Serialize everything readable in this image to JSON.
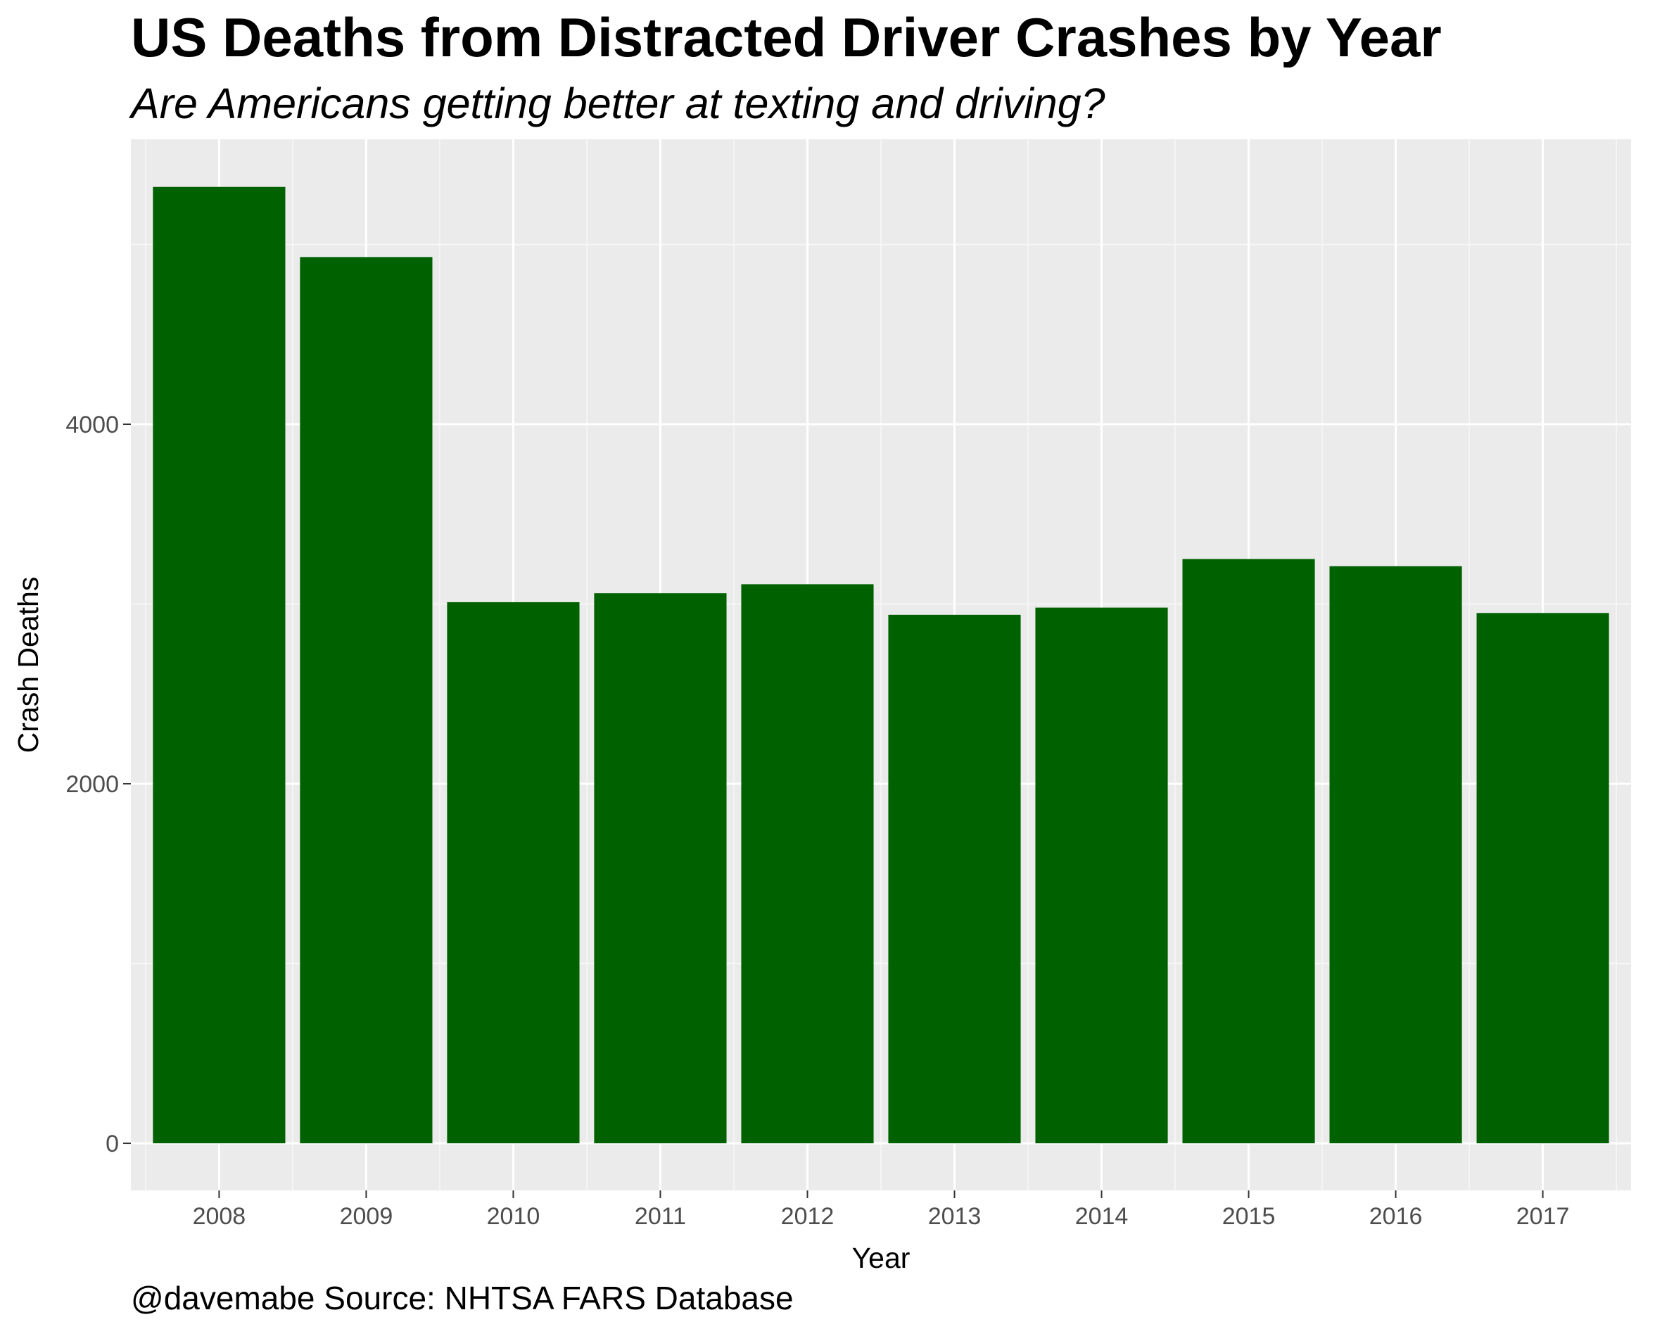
{
  "chart_data": {
    "type": "bar",
    "title": "US Deaths from Distracted Driver Crashes by Year",
    "subtitle": "Are Americans getting better at texting and driving?",
    "caption": "@davemabe Source: NHTSA FARS Database",
    "xlabel": "Year",
    "ylabel": "Crash Deaths",
    "categories": [
      "2008",
      "2009",
      "2010",
      "2011",
      "2012",
      "2013",
      "2014",
      "2015",
      "2016",
      "2017"
    ],
    "values": [
      5320,
      4930,
      3010,
      3060,
      3110,
      2940,
      2980,
      3250,
      3210,
      2950
    ],
    "yticks": [
      0,
      2000,
      4000
    ],
    "ylim": [
      -262,
      5585
    ],
    "grid": true,
    "legend": "none",
    "colors": {
      "bar": "#006100",
      "panel": "#ebebeb",
      "grid_major": "#ffffff",
      "grid_minor": "#f7f7f7",
      "tick_text": "#4d4d4d",
      "text": "#000000"
    }
  }
}
